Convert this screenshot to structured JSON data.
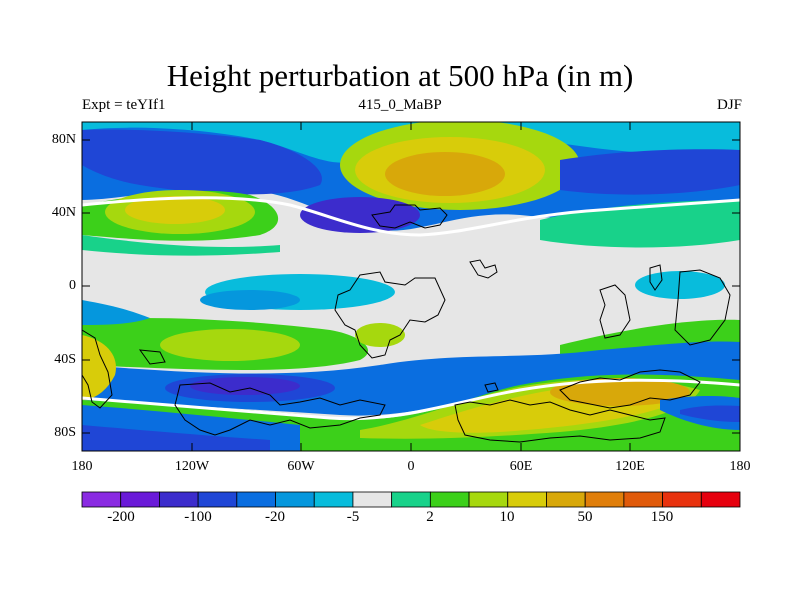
{
  "title": "Height perturbation at 500 hPa (in m)",
  "subtitle_left": "Expt = teYIf1",
  "subtitle_center": "415_0_MaBP",
  "subtitle_right": "DJF",
  "map": {
    "lat_labels": [
      "80N",
      "40N",
      "0",
      "40S",
      "80S"
    ],
    "lon_labels": [
      "180",
      "120W",
      "60W",
      "0",
      "60E",
      "120E",
      "180"
    ]
  },
  "colorbar": {
    "colors": [
      "#8a2be2",
      "#6a1ad8",
      "#3c2ccc",
      "#1f46d6",
      "#0a6ee0",
      "#0597dd",
      "#08bcdc",
      "#e6e6e6",
      "#18d28a",
      "#3cd01a",
      "#a6d80e",
      "#d8cc0a",
      "#d8a80a",
      "#e07e0a",
      "#e05a0a",
      "#e8320e",
      "#e6000e"
    ],
    "labels": [
      "-200",
      "-100",
      "-20",
      "-5",
      "2",
      "10",
      "50",
      "150"
    ]
  }
}
